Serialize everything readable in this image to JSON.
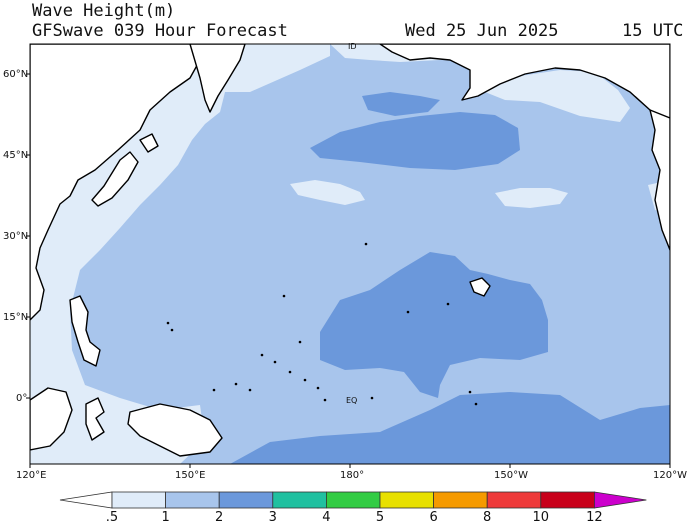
{
  "header": {
    "title_line1": "Wave Height(m)",
    "title_line2": "GFSwave 039 Hour Forecast",
    "date": "Wed 25 Jun 2025",
    "time": "15 UTC"
  },
  "map": {
    "lat_labels": [
      "60°N",
      "45°N",
      "30°N",
      "15°N",
      "0°"
    ],
    "lon_labels": [
      "120°E",
      "150°E",
      "180°",
      "150°W",
      "120°W"
    ],
    "inmap_labels": [
      "EQ",
      "ID"
    ],
    "colors": {
      "ocean_0_5_to_1": "#e0ecf9",
      "ocean_1_to_2": "#a8c5ec",
      "ocean_2_to_3": "#6b98db",
      "land": "#ffffff",
      "coast": "#000000"
    }
  },
  "colorbar": {
    "labels": [
      ".5",
      "1",
      "2",
      "3",
      "4",
      "5",
      "6",
      "8",
      "10",
      "12"
    ],
    "colors": [
      "#e0ecf9",
      "#a8c5ec",
      "#6b98db",
      "#20c0a0",
      "#33cc44",
      "#e8e000",
      "#f59a00",
      "#ee3a3a",
      "#c8001a",
      "#cc00cc"
    ]
  }
}
